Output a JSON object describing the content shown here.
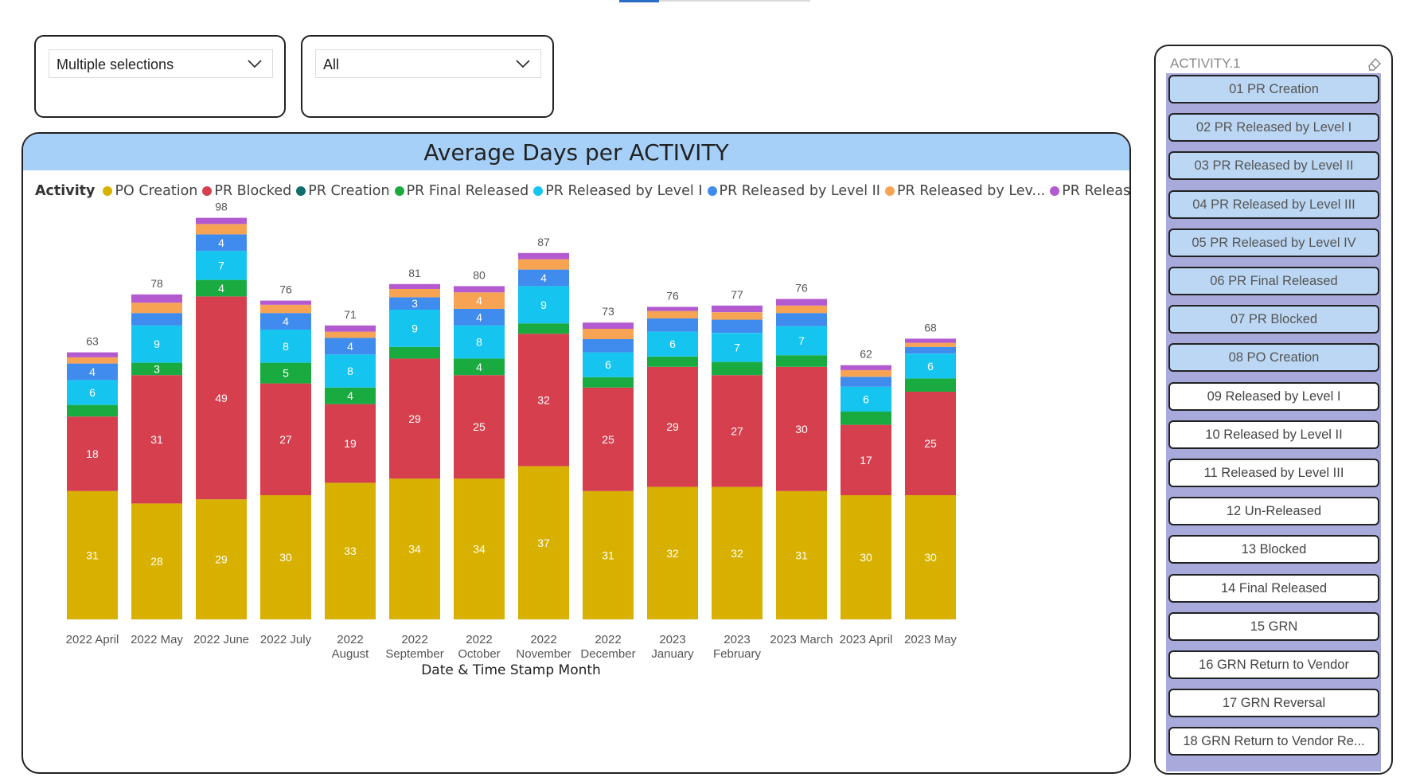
{
  "filters": {
    "filter1_value": "Multiple selections",
    "filter2_value": "All"
  },
  "chart": {
    "title": "Average Days per ACTIVITY",
    "legend_title": "Activity",
    "x_axis_title": "Date & Time Stamp Month",
    "legend": [
      {
        "label": "PO Creation",
        "color": "#d8b100"
      },
      {
        "label": "PR Blocked",
        "color": "#d6404e"
      },
      {
        "label": "PR Creation",
        "color": "#126e6d"
      },
      {
        "label": "PR Final Released",
        "color": "#1aab40"
      },
      {
        "label": "PR Released by Level I",
        "color": "#15c5f0"
      },
      {
        "label": "PR Released by Level II",
        "color": "#3f8bee"
      },
      {
        "label": "PR Released by Lev...",
        "color": "#f7a354"
      },
      {
        "label": "PR Released by ...",
        "color": "#b35ad0"
      }
    ]
  },
  "chart_data": {
    "type": "bar",
    "stacked": true,
    "title": "Average Days per ACTIVITY",
    "xlabel": "Date & Time Stamp Month",
    "ylabel": "",
    "ylim": [
      0,
      100
    ],
    "categories": [
      [
        "2022 April"
      ],
      [
        "2022 May"
      ],
      [
        "2022 June"
      ],
      [
        "2022 July"
      ],
      [
        "2022",
        "August"
      ],
      [
        "2022",
        "September"
      ],
      [
        "2022",
        "October"
      ],
      [
        "2022",
        "November"
      ],
      [
        "2022",
        "December"
      ],
      [
        "2023",
        "January"
      ],
      [
        "2023",
        "February"
      ],
      [
        "2023 March"
      ],
      [
        "2023 April"
      ],
      [
        "2023 May"
      ]
    ],
    "totals": [
      63,
      78,
      98,
      76,
      71,
      81,
      80,
      87,
      73,
      76,
      77,
      76,
      62,
      68
    ],
    "series": [
      {
        "name": "PO Creation",
        "color": "#d8b100",
        "values": [
          31,
          28,
          29,
          30,
          33,
          34,
          34,
          37,
          31,
          32,
          32,
          31,
          30,
          30
        ],
        "labels": [
          31,
          28,
          29,
          30,
          33,
          34,
          34,
          37,
          31,
          32,
          32,
          31,
          30,
          30
        ]
      },
      {
        "name": "PR Blocked",
        "color": "#d6404e",
        "values": [
          18,
          31,
          49,
          27,
          19,
          29,
          25,
          32,
          25,
          29,
          27,
          30,
          17,
          25
        ],
        "labels": [
          18,
          31,
          49,
          27,
          19,
          29,
          25,
          32,
          25,
          29,
          27,
          30,
          17,
          25
        ]
      },
      {
        "name": "PR Creation",
        "color": "#126e6d",
        "values": [
          0,
          0,
          0,
          0,
          0,
          0,
          0,
          0,
          0,
          0,
          0,
          0,
          0,
          0
        ],
        "labels": [
          null,
          null,
          null,
          null,
          null,
          null,
          null,
          null,
          null,
          null,
          null,
          null,
          null,
          null
        ]
      },
      {
        "name": "PR Final Released",
        "color": "#1aab40",
        "values": [
          2.8,
          3,
          4,
          5,
          4,
          2.8,
          4,
          2.5,
          2.5,
          2.5,
          3.2,
          2.8,
          3.2,
          3.2
        ],
        "labels": [
          null,
          3,
          4,
          5,
          4,
          null,
          4,
          null,
          null,
          null,
          null,
          null,
          null,
          null
        ]
      },
      {
        "name": "PR Released by Level I",
        "color": "#15c5f0",
        "values": [
          6,
          9,
          7,
          8,
          8,
          9,
          8,
          9,
          6,
          6,
          7,
          7,
          6,
          6
        ],
        "labels": [
          6,
          9,
          7,
          8,
          8,
          9,
          8,
          9,
          6,
          6,
          7,
          7,
          6,
          6
        ]
      },
      {
        "name": "PR Released by Level II",
        "color": "#3f8bee",
        "values": [
          4,
          3,
          4,
          4,
          4,
          3,
          4,
          4,
          3.2,
          3.2,
          3.2,
          3.2,
          2.4,
          1.6
        ],
        "labels": [
          4,
          null,
          4,
          4,
          4,
          3,
          4,
          4,
          null,
          null,
          null,
          null,
          null,
          null
        ]
      },
      {
        "name": "PR Released by Lev...",
        "color": "#f7a354",
        "values": [
          1.5,
          2.5,
          2.5,
          2,
          1.5,
          2,
          4,
          2.5,
          2.5,
          1.8,
          1.8,
          1.8,
          1.6,
          1
        ],
        "labels": [
          null,
          null,
          null,
          null,
          null,
          null,
          4,
          null,
          null,
          null,
          null,
          null,
          null,
          null
        ]
      },
      {
        "name": "PR Released by ...",
        "color": "#b35ad0",
        "values": [
          1.2,
          2,
          1.5,
          1,
          1.5,
          1.2,
          1.5,
          1.5,
          1.5,
          1,
          1.6,
          1.6,
          1.2,
          1
        ],
        "labels": [
          null,
          null,
          null,
          null,
          null,
          null,
          null,
          null,
          null,
          null,
          null,
          null,
          null,
          null
        ]
      }
    ]
  },
  "activity_panel": {
    "title": "ACTIVITY.1",
    "items": [
      {
        "label": "01 PR Creation",
        "selected": true
      },
      {
        "label": "02 PR Released by Level I",
        "selected": true
      },
      {
        "label": "03 PR Released by Level II",
        "selected": true
      },
      {
        "label": "04 PR Released by Level III",
        "selected": true
      },
      {
        "label": "05 PR Released by Level IV",
        "selected": true
      },
      {
        "label": "06 PR Final Released",
        "selected": true
      },
      {
        "label": "07 PR Blocked",
        "selected": true
      },
      {
        "label": "08 PO Creation",
        "selected": true
      },
      {
        "label": "09 Released by Level I",
        "selected": false
      },
      {
        "label": "10 Released by Level II",
        "selected": false
      },
      {
        "label": "11 Released by Level III",
        "selected": false
      },
      {
        "label": "12 Un-Released",
        "selected": false
      },
      {
        "label": "13 Blocked",
        "selected": false
      },
      {
        "label": "14 Final Released",
        "selected": false
      },
      {
        "label": "15 GRN",
        "selected": false
      },
      {
        "label": "16 GRN Return to Vendor",
        "selected": false
      },
      {
        "label": "17 GRN Reversal",
        "selected": false
      },
      {
        "label": "18 GRN Return to Vendor Re...",
        "selected": false
      }
    ]
  }
}
